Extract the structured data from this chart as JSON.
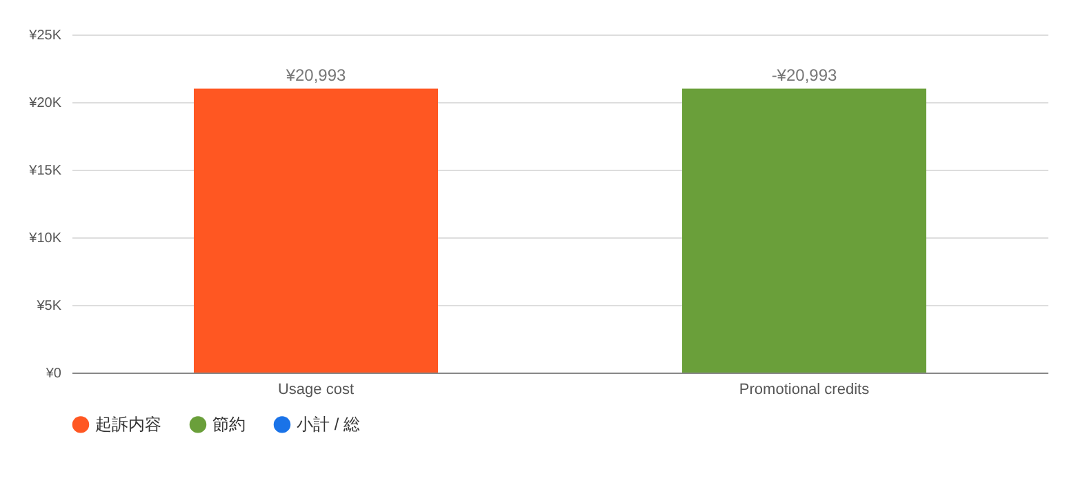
{
  "chart_data": {
    "type": "bar",
    "categories": [
      "Usage cost",
      "Promotional credits"
    ],
    "series": [
      {
        "name": "起訴内容",
        "color": "#ff5722",
        "values": [
          20993,
          null
        ],
        "base": [
          0,
          null
        ],
        "value_labels": [
          "¥20,993",
          null
        ]
      },
      {
        "name": "節約",
        "color": "#6a9f3a",
        "values": [
          null,
          -20993
        ],
        "base": [
          null,
          20993
        ],
        "value_labels": [
          null,
          "-¥20,993"
        ]
      },
      {
        "name": "小計 / 総",
        "color": "#1a73e8",
        "values": [
          null,
          null
        ],
        "value_labels": [
          null,
          null
        ]
      }
    ],
    "ylim": [
      0,
      25000
    ],
    "yticks": [
      {
        "value": 0,
        "label": "¥0"
      },
      {
        "value": 5000,
        "label": "¥5K"
      },
      {
        "value": 10000,
        "label": "¥10K"
      },
      {
        "value": 15000,
        "label": "¥15K"
      },
      {
        "value": 20000,
        "label": "¥20K"
      },
      {
        "value": 25000,
        "label": "¥25K"
      }
    ],
    "grid": "y",
    "legend": "bottom left"
  }
}
